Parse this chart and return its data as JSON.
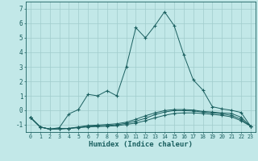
{
  "xlabel": "Humidex (Indice chaleur)",
  "xlim": [
    -0.5,
    23.5
  ],
  "ylim": [
    -1.5,
    7.5
  ],
  "yticks": [
    -1,
    0,
    1,
    2,
    3,
    4,
    5,
    6,
    7
  ],
  "xticks": [
    0,
    1,
    2,
    3,
    4,
    5,
    6,
    7,
    8,
    9,
    10,
    11,
    12,
    13,
    14,
    15,
    16,
    17,
    18,
    19,
    20,
    21,
    22,
    23
  ],
  "bg_color": "#c2e8e8",
  "line_color": "#1a5f5f",
  "grid_color": "#a0cccc",
  "curves": {
    "main": [
      [
        0,
        -0.5
      ],
      [
        1,
        -1.15
      ],
      [
        2,
        -1.3
      ],
      [
        3,
        -1.2
      ],
      [
        4,
        -0.25
      ],
      [
        5,
        0.05
      ],
      [
        6,
        1.1
      ],
      [
        7,
        1.0
      ],
      [
        8,
        1.35
      ],
      [
        9,
        1.0
      ],
      [
        10,
        3.0
      ],
      [
        11,
        5.7
      ],
      [
        12,
        5.0
      ],
      [
        13,
        5.85
      ],
      [
        14,
        6.8
      ],
      [
        15,
        5.85
      ],
      [
        16,
        3.85
      ],
      [
        17,
        2.1
      ],
      [
        18,
        1.4
      ],
      [
        19,
        0.25
      ],
      [
        20,
        0.1
      ],
      [
        21,
        0.0
      ],
      [
        22,
        -0.15
      ],
      [
        23,
        -1.1
      ]
    ],
    "line2": [
      [
        0,
        -0.5
      ],
      [
        1,
        -1.15
      ],
      [
        2,
        -1.3
      ],
      [
        3,
        -1.28
      ],
      [
        4,
        -1.25
      ],
      [
        5,
        -1.15
      ],
      [
        6,
        -1.05
      ],
      [
        7,
        -1.02
      ],
      [
        8,
        -0.98
      ],
      [
        9,
        -0.93
      ],
      [
        10,
        -0.82
      ],
      [
        11,
        -0.62
      ],
      [
        12,
        -0.38
      ],
      [
        13,
        -0.18
      ],
      [
        14,
        -0.02
      ],
      [
        15,
        0.05
      ],
      [
        16,
        0.05
      ],
      [
        17,
        0.02
      ],
      [
        18,
        -0.08
      ],
      [
        19,
        -0.12
      ],
      [
        20,
        -0.18
      ],
      [
        21,
        -0.22
      ],
      [
        22,
        -0.48
      ],
      [
        23,
        -1.1
      ]
    ],
    "line3": [
      [
        0,
        -0.5
      ],
      [
        1,
        -1.15
      ],
      [
        2,
        -1.3
      ],
      [
        3,
        -1.28
      ],
      [
        4,
        -1.25
      ],
      [
        5,
        -1.18
      ],
      [
        6,
        -1.1
      ],
      [
        7,
        -1.08
      ],
      [
        8,
        -1.05
      ],
      [
        9,
        -1.0
      ],
      [
        10,
        -0.9
      ],
      [
        11,
        -0.75
      ],
      [
        12,
        -0.55
      ],
      [
        13,
        -0.3
      ],
      [
        14,
        -0.12
      ],
      [
        15,
        -0.02
      ],
      [
        16,
        -0.02
      ],
      [
        17,
        -0.05
      ],
      [
        18,
        -0.12
      ],
      [
        19,
        -0.18
      ],
      [
        20,
        -0.25
      ],
      [
        21,
        -0.35
      ],
      [
        22,
        -0.62
      ],
      [
        23,
        -1.1
      ]
    ],
    "line4": [
      [
        0,
        -0.5
      ],
      [
        1,
        -1.15
      ],
      [
        2,
        -1.3
      ],
      [
        3,
        -1.28
      ],
      [
        4,
        -1.25
      ],
      [
        5,
        -1.2
      ],
      [
        6,
        -1.15
      ],
      [
        7,
        -1.12
      ],
      [
        8,
        -1.1
      ],
      [
        9,
        -1.07
      ],
      [
        10,
        -0.98
      ],
      [
        11,
        -0.88
      ],
      [
        12,
        -0.72
      ],
      [
        13,
        -0.52
      ],
      [
        14,
        -0.35
      ],
      [
        15,
        -0.22
      ],
      [
        16,
        -0.18
      ],
      [
        17,
        -0.18
      ],
      [
        18,
        -0.22
      ],
      [
        19,
        -0.28
      ],
      [
        20,
        -0.35
      ],
      [
        21,
        -0.45
      ],
      [
        22,
        -0.72
      ],
      [
        23,
        -1.1
      ]
    ]
  }
}
